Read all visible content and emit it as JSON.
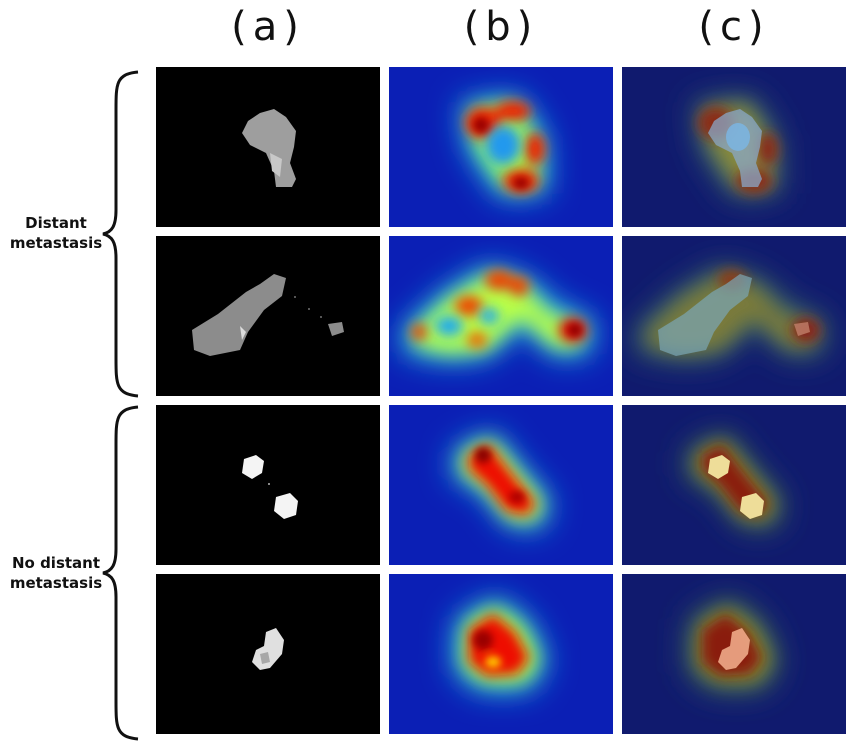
{
  "columns": {
    "a": "(a)",
    "b": "(b)",
    "c": "(c)"
  },
  "groups": {
    "distant": {
      "line1": "Distant",
      "line2": "metastasis"
    },
    "no_distant": {
      "line1": "No distant",
      "line2": "metastasis"
    }
  },
  "colors": {
    "background_b": "#0b1fb5",
    "background_c": "#101a6e",
    "tumor_gray": "#9a9a9a",
    "heat_red": "#cc0000",
    "heat_yellow": "#ffee00",
    "heat_cyan": "#33ddee"
  }
}
